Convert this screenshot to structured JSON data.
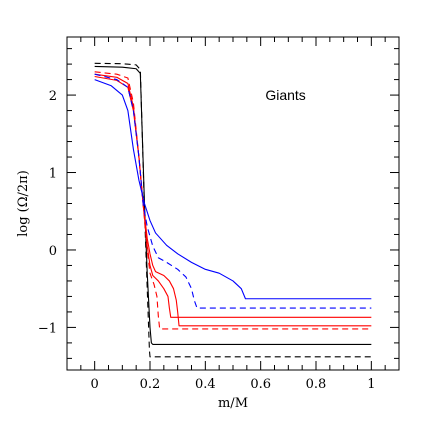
{
  "chart_data": {
    "type": "line",
    "xlabel": "m/M",
    "ylabel": "log (Ω/2π)",
    "xlim": [
      -0.1,
      1.1
    ],
    "ylim": [
      -1.55,
      2.75
    ],
    "xticks": [
      {
        "value": 0,
        "label": "0"
      },
      {
        "value": 0.2,
        "label": "0.2"
      },
      {
        "value": 0.4,
        "label": "0.4"
      },
      {
        "value": 0.6,
        "label": "0.6"
      },
      {
        "value": 0.8,
        "label": "0.8"
      },
      {
        "value": 1,
        "label": "1"
      }
    ],
    "x_minor_step": 0.05,
    "yticks": [
      {
        "value": -1,
        "label": "−1"
      },
      {
        "value": 0,
        "label": "0"
      },
      {
        "value": 1,
        "label": "1"
      },
      {
        "value": 2,
        "label": "2"
      }
    ],
    "y_minor_step": 0.2,
    "grid": false,
    "annotations": [
      {
        "text": "Giants",
        "x": 0.69,
        "y": 2.0
      }
    ],
    "series": [
      {
        "color": "#000000",
        "dash": "dashed",
        "points": [
          [
            0,
            2.41
          ],
          [
            0.1,
            2.405
          ],
          [
            0.15,
            2.39
          ],
          [
            0.165,
            2.33
          ],
          [
            0.172,
            1.5
          ],
          [
            0.18,
            0.5
          ],
          [
            0.19,
            -0.5
          ],
          [
            0.198,
            -1.3
          ],
          [
            0.2,
            -1.38
          ],
          [
            1.0,
            -1.38
          ]
        ]
      },
      {
        "color": "#000000",
        "dash": "solid",
        "points": [
          [
            0,
            2.37
          ],
          [
            0.1,
            2.36
          ],
          [
            0.15,
            2.34
          ],
          [
            0.165,
            2.28
          ],
          [
            0.172,
            1.5
          ],
          [
            0.18,
            0.6
          ],
          [
            0.19,
            -0.3
          ],
          [
            0.2,
            -1.0
          ],
          [
            0.205,
            -1.2
          ],
          [
            0.21,
            -1.22
          ],
          [
            1.0,
            -1.22
          ]
        ]
      },
      {
        "color": "#ff0000",
        "dash": "dashed",
        "points": [
          [
            0,
            2.3
          ],
          [
            0.08,
            2.27
          ],
          [
            0.12,
            2.22
          ],
          [
            0.14,
            1.9
          ],
          [
            0.16,
            1.2
          ],
          [
            0.175,
            0.6
          ],
          [
            0.19,
            0.0
          ],
          [
            0.2,
            -0.3
          ],
          [
            0.215,
            -0.45
          ],
          [
            0.225,
            -0.6
          ],
          [
            0.23,
            -0.85
          ],
          [
            0.235,
            -1.02
          ],
          [
            1.0,
            -1.02
          ]
        ]
      },
      {
        "color": "#ff0000",
        "dash": "solid",
        "points": [
          [
            0,
            2.27
          ],
          [
            0.08,
            2.23
          ],
          [
            0.12,
            2.15
          ],
          [
            0.14,
            1.85
          ],
          [
            0.16,
            1.2
          ],
          [
            0.175,
            0.6
          ],
          [
            0.19,
            0.05
          ],
          [
            0.2,
            -0.2
          ],
          [
            0.21,
            -0.33
          ],
          [
            0.23,
            -0.4
          ],
          [
            0.25,
            -0.5
          ],
          [
            0.265,
            -0.6
          ],
          [
            0.27,
            -0.75
          ],
          [
            0.275,
            -0.87
          ],
          [
            1.0,
            -0.87
          ]
        ]
      },
      {
        "color": "#ff0000",
        "dash": "solid",
        "points": [
          [
            0,
            2.24
          ],
          [
            0.08,
            2.19
          ],
          [
            0.12,
            2.1
          ],
          [
            0.14,
            1.8
          ],
          [
            0.16,
            1.2
          ],
          [
            0.175,
            0.6
          ],
          [
            0.19,
            0.15
          ],
          [
            0.2,
            -0.05
          ],
          [
            0.21,
            -0.2
          ],
          [
            0.22,
            -0.28
          ],
          [
            0.25,
            -0.33
          ],
          [
            0.27,
            -0.4
          ],
          [
            0.285,
            -0.5
          ],
          [
            0.295,
            -0.65
          ],
          [
            0.3,
            -0.8
          ],
          [
            0.305,
            -0.98
          ],
          [
            1.0,
            -0.98
          ]
        ]
      },
      {
        "color": "#0000ff",
        "dash": "dashed",
        "points": [
          [
            0,
            2.27
          ],
          [
            0.08,
            2.2
          ],
          [
            0.12,
            2.1
          ],
          [
            0.14,
            1.8
          ],
          [
            0.16,
            1.2
          ],
          [
            0.175,
            0.6
          ],
          [
            0.19,
            0.3
          ],
          [
            0.21,
            0.05
          ],
          [
            0.23,
            -0.1
          ],
          [
            0.26,
            -0.16
          ],
          [
            0.3,
            -0.25
          ],
          [
            0.33,
            -0.35
          ],
          [
            0.35,
            -0.5
          ],
          [
            0.36,
            -0.65
          ],
          [
            0.37,
            -0.75
          ],
          [
            1.0,
            -0.75
          ]
        ]
      },
      {
        "color": "#0000ff",
        "dash": "solid",
        "points": [
          [
            0,
            2.2
          ],
          [
            0.06,
            2.12
          ],
          [
            0.1,
            2.0
          ],
          [
            0.12,
            1.8
          ],
          [
            0.14,
            1.3
          ],
          [
            0.16,
            0.9
          ],
          [
            0.18,
            0.6
          ],
          [
            0.2,
            0.38
          ],
          [
            0.22,
            0.22
          ],
          [
            0.26,
            0.06
          ],
          [
            0.3,
            -0.05
          ],
          [
            0.35,
            -0.16
          ],
          [
            0.4,
            -0.25
          ],
          [
            0.45,
            -0.3
          ],
          [
            0.5,
            -0.4
          ],
          [
            0.53,
            -0.5
          ],
          [
            0.545,
            -0.63
          ],
          [
            1.0,
            -0.63
          ]
        ]
      }
    ]
  }
}
